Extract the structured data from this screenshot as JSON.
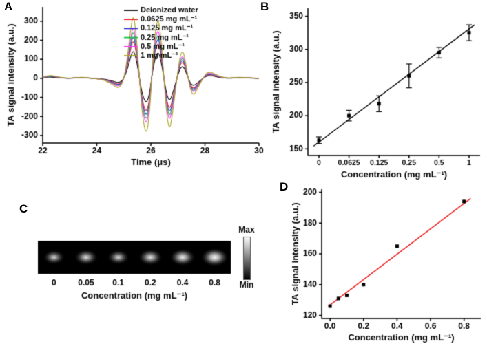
{
  "figure": {
    "background": "#ffffff",
    "panels": [
      {
        "id": "A",
        "label": "A"
      },
      {
        "id": "B",
        "label": "B"
      },
      {
        "id": "C",
        "label": "C"
      },
      {
        "id": "D",
        "label": "D"
      }
    ]
  },
  "chart_data": [
    {
      "panel": "A",
      "type": "line",
      "xlabel": "Time (μs)",
      "ylabel": "TA signal intensity (a.u.)",
      "xlim": [
        22,
        30
      ],
      "ylim": [
        -340,
        375
      ],
      "xticks": [
        22,
        24,
        26,
        28,
        30
      ],
      "yticks": [
        -300,
        -200,
        -100,
        0,
        100,
        200,
        300
      ],
      "legend_position": "top-right",
      "series": [
        {
          "name": "Deionized water",
          "color": "#000000",
          "peak_amplitude": 150
        },
        {
          "name": "0.0625 mg mL⁻¹",
          "color": "#ee1f24",
          "peak_amplitude": 205
        },
        {
          "name": "0.125 mg mL⁻¹",
          "color": "#2a2ad4",
          "peak_amplitude": 230
        },
        {
          "name": "0.25 mg mL⁻¹",
          "color": "#0fbf3c",
          "peak_amplitude": 255
        },
        {
          "name": "0.5 mg mL⁻¹",
          "color": "#f93df9",
          "peak_amplitude": 280
        },
        {
          "name": "1 mg mL⁻¹",
          "color": "#a6a31e",
          "peak_amplitude": 340
        }
      ],
      "base_waveform": [
        [
          22.0,
          0.02
        ],
        [
          22.2,
          0.045
        ],
        [
          22.4,
          0.04
        ],
        [
          22.6,
          0.02
        ],
        [
          22.9,
          0.0
        ],
        [
          23.2,
          0.01
        ],
        [
          23.5,
          0.02
        ],
        [
          23.8,
          0.0
        ],
        [
          24.0,
          -0.01
        ],
        [
          24.2,
          -0.02
        ],
        [
          24.4,
          -0.05
        ],
        [
          24.6,
          -0.1
        ],
        [
          24.8,
          -0.16
        ],
        [
          24.95,
          -0.08
        ],
        [
          25.05,
          0.1
        ],
        [
          25.15,
          0.38
        ],
        [
          25.25,
          0.75
        ],
        [
          25.35,
          1.0
        ],
        [
          25.45,
          0.72
        ],
        [
          25.55,
          0.18
        ],
        [
          25.65,
          -0.42
        ],
        [
          25.75,
          -0.75
        ],
        [
          25.85,
          -0.86
        ],
        [
          25.95,
          -0.55
        ],
        [
          26.02,
          -0.05
        ],
        [
          26.1,
          0.45
        ],
        [
          26.2,
          0.85
        ],
        [
          26.3,
          0.9
        ],
        [
          26.4,
          0.5
        ],
        [
          26.5,
          -0.1
        ],
        [
          26.6,
          -0.62
        ],
        [
          26.7,
          -0.8
        ],
        [
          26.8,
          -0.55
        ],
        [
          26.9,
          -0.22
        ],
        [
          27.0,
          0.12
        ],
        [
          27.1,
          0.38
        ],
        [
          27.2,
          0.42
        ],
        [
          27.3,
          0.22
        ],
        [
          27.4,
          -0.05
        ],
        [
          27.5,
          -0.22
        ],
        [
          27.6,
          -0.26
        ],
        [
          27.75,
          -0.14
        ],
        [
          27.9,
          -0.02
        ],
        [
          28.05,
          0.08
        ],
        [
          28.2,
          0.1
        ],
        [
          28.4,
          0.06
        ],
        [
          28.6,
          0.02
        ],
        [
          28.9,
          0.0
        ],
        [
          29.2,
          0.02
        ],
        [
          29.6,
          0.01
        ],
        [
          30.0,
          0.0
        ]
      ]
    },
    {
      "panel": "B",
      "type": "scatter",
      "xlabel": "Concentration (mg mL⁻¹)",
      "ylabel": "TA signal intensity (a.u.)",
      "categories": [
        "0",
        "0.0625",
        "0.125",
        "0.25",
        "0.5",
        "1"
      ],
      "values": [
        163,
        200,
        218,
        260,
        295,
        325
      ],
      "errors": [
        5,
        8,
        12,
        18,
        8,
        12
      ],
      "ylim": [
        140,
        362
      ],
      "yticks": [
        150,
        200,
        250,
        300,
        350
      ],
      "marker": "square",
      "marker_color": "#000000",
      "fit_line": {
        "color": "#000000",
        "x_index": [
          -0.18,
          5.18
        ],
        "y": [
          154,
          337
        ]
      }
    },
    {
      "panel": "C",
      "type": "heatmap",
      "xlabel": "Concentration (mg mL⁻¹)",
      "spot_labels": [
        "0",
        "0.05",
        "0.1",
        "0.2",
        "0.4",
        "0.8"
      ],
      "spot_intensities": [
        0.5,
        0.62,
        0.52,
        0.68,
        0.78,
        0.92
      ],
      "colorbar": {
        "max_label": "Max",
        "min_label": "Min"
      }
    },
    {
      "panel": "D",
      "type": "scatter",
      "xlabel": "Concentration (mg mL⁻¹)",
      "ylabel": "TA signal intensity (a.u.)",
      "x": [
        0,
        0.05,
        0.1,
        0.2,
        0.4,
        0.8
      ],
      "values": [
        126,
        131,
        133,
        140,
        165,
        194
      ],
      "xlim": [
        -0.05,
        0.9
      ],
      "ylim": [
        118,
        202
      ],
      "xticks": [
        0,
        0.2,
        0.4,
        0.6,
        0.8
      ],
      "xtick_labels": [
        "0.0",
        "0.2",
        "0.4",
        "0.6",
        "0.8"
      ],
      "yticks": [
        120,
        140,
        160,
        180,
        200
      ],
      "marker": "square",
      "marker_color": "#000000",
      "fit_line": {
        "color": "#ee2222",
        "x": [
          -0.01,
          0.84
        ],
        "y": [
          126,
          196
        ]
      }
    }
  ]
}
